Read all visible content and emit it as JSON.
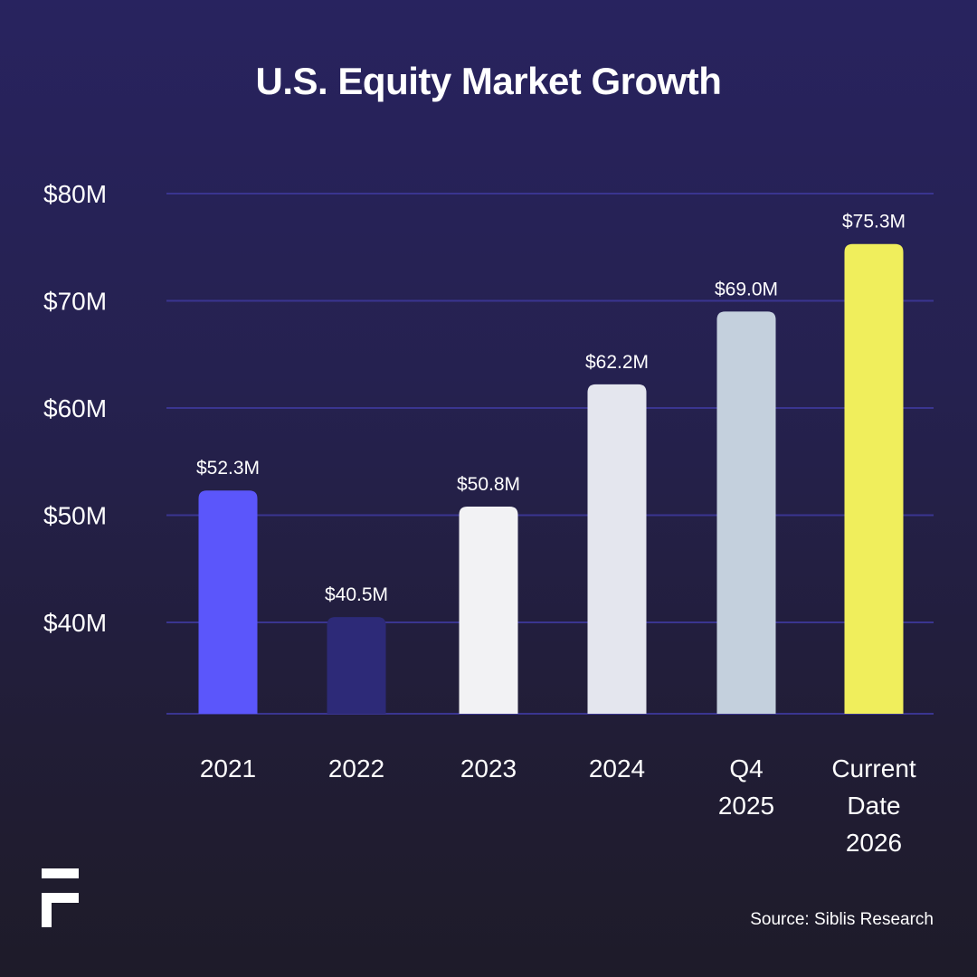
{
  "chart_data": {
    "type": "bar",
    "title": "U.S. Equity Market Growth",
    "xlabel": "",
    "ylabel": "",
    "categories": [
      "2021",
      "2022",
      "2023",
      "2024",
      "Q4 2025",
      "Current Date 2026"
    ],
    "category_lines": [
      [
        "2021"
      ],
      [
        "2022"
      ],
      [
        "2023"
      ],
      [
        "2024"
      ],
      [
        "Q4",
        "2025"
      ],
      [
        "Current",
        "Date",
        "2026"
      ]
    ],
    "values": [
      52.3,
      40.5,
      50.8,
      62.2,
      69.0,
      75.3
    ],
    "data_labels": [
      "$52.3M",
      "$40.5M",
      "$50.8M",
      "$62.2M",
      "$69.0M",
      "$75.3M"
    ],
    "bar_colors": [
      "#5b56fb",
      "#2d2a78",
      "#f2f2f4",
      "#e4e6ee",
      "#c4d0dd",
      "#f0ee5c"
    ],
    "yticks": [
      40,
      50,
      60,
      70,
      80
    ],
    "ytick_labels": [
      "$40M",
      "$50M",
      "$60M",
      "$70M",
      "$80M"
    ],
    "ylim": [
      40,
      80
    ],
    "grid": true,
    "legend": "none"
  },
  "footer": {
    "source": "Source: Siblis Research",
    "logo_icon": "brand-f-logo-icon"
  },
  "colors": {
    "background_top": "#28235f",
    "background_bottom": "#1e1b29",
    "gridline": "#3a3590"
  }
}
